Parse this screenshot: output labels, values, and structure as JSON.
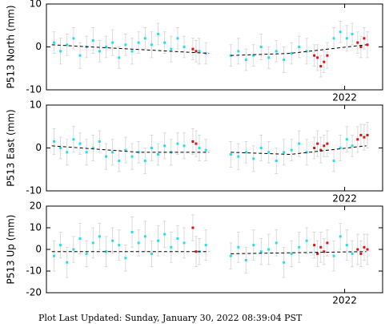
{
  "chart_data": [
    {
      "type": "scatter",
      "ylabel": "P513 North (mm)",
      "xlim": [
        2019.25,
        2022.35
      ],
      "xticks": [
        2022
      ],
      "ylim": [
        -10,
        10
      ],
      "yticks": [
        -10,
        0,
        10
      ],
      "series": [
        {
          "color": "#22e0f0",
          "mode": "points",
          "x": [
            2019.32,
            2019.38,
            2019.44,
            2019.5,
            2019.56,
            2019.62,
            2019.68,
            2019.74,
            2019.8,
            2019.86,
            2019.92,
            2019.98,
            2020.04,
            2020.1,
            2020.16,
            2020.22,
            2020.28,
            2020.34,
            2020.4,
            2020.46,
            2020.52,
            2020.66,
            2020.72,
            2020.95,
            2021.02,
            2021.09,
            2021.16,
            2021.23,
            2021.3,
            2021.37,
            2021.44,
            2021.51,
            2021.58,
            2021.65,
            2021.9,
            2021.96,
            2022.02,
            2022.07
          ],
          "values": [
            1,
            -1,
            0.5,
            2,
            -2,
            0,
            1.5,
            -1,
            0,
            1,
            -2.5,
            0.5,
            -1,
            1,
            2,
            0.5,
            3,
            1,
            -0.5,
            2,
            0,
            -1,
            -1.5,
            -2,
            -1,
            -3,
            -2,
            0,
            -2.5,
            -1,
            -3,
            -1.5,
            0,
            -1,
            2,
            3.5,
            2,
            3
          ],
          "errors": [
            2.5,
            3,
            2.5,
            2.5,
            3,
            2.5,
            3,
            2.5,
            2.5,
            3,
            2.5,
            2.5,
            3,
            2.5,
            2.5,
            3,
            2.5,
            2.5,
            3,
            2.5,
            2.5,
            3,
            2.5,
            2.5,
            3,
            2.5,
            2.5,
            3,
            2.5,
            2.5,
            3,
            2.5,
            2.5,
            3,
            2.5,
            2.5,
            3,
            2.5
          ]
        },
        {
          "color": "#e01010",
          "mode": "points",
          "x": [
            2020.6,
            2020.63,
            2021.72,
            2021.75,
            2021.78,
            2021.81,
            2021.84,
            2022.12,
            2022.15,
            2022.18,
            2022.21
          ],
          "values": [
            -0.5,
            -1,
            -2,
            -2.5,
            -4.5,
            -3.5,
            -2,
            1,
            0,
            2,
            0.5
          ],
          "errors": [
            2.5,
            2.5,
            2.5,
            3,
            2.5,
            2.5,
            3,
            2.5,
            2.5,
            2.5,
            3
          ]
        },
        {
          "color": "#000000",
          "mode": "dashed-line",
          "x": [
            2019.3,
            2020.75,
            2020.85,
            2020.95,
            2021.5,
            2022.2
          ],
          "values": [
            0.5,
            -1.5,
            null,
            -2,
            -1.5,
            0.5
          ]
        }
      ]
    },
    {
      "type": "scatter",
      "ylabel": "P513 East (mm)",
      "xlim": [
        2019.25,
        2022.35
      ],
      "xticks": [
        2022
      ],
      "ylim": [
        -10,
        10
      ],
      "yticks": [
        -10,
        0,
        10
      ],
      "series": [
        {
          "color": "#22e0f0",
          "mode": "points",
          "x": [
            2019.32,
            2019.38,
            2019.44,
            2019.5,
            2019.56,
            2019.62,
            2019.68,
            2019.74,
            2019.8,
            2019.86,
            2019.92,
            2019.98,
            2020.04,
            2020.1,
            2020.16,
            2020.22,
            2020.28,
            2020.34,
            2020.4,
            2020.46,
            2020.52,
            2020.66,
            2020.72,
            2020.95,
            2021.02,
            2021.09,
            2021.16,
            2021.23,
            2021.3,
            2021.37,
            2021.44,
            2021.51,
            2021.58,
            2021.65,
            2021.9,
            2021.96,
            2022.02,
            2022.07
          ],
          "values": [
            1.5,
            0,
            -1,
            2,
            1,
            -1,
            0,
            1.5,
            -2,
            -1,
            -3,
            -0.5,
            -2,
            -1,
            -3,
            0,
            -1.5,
            0.5,
            -1,
            1,
            0.5,
            0,
            -0.5,
            -1.5,
            -2,
            -1,
            -2.5,
            0,
            -1,
            -3,
            -1,
            -0.5,
            1,
            -1,
            -3,
            0,
            2,
            0.5
          ],
          "errors": [
            3,
            2.5,
            3,
            3,
            2.5,
            3,
            3,
            2.5,
            3,
            3,
            2.5,
            3,
            3,
            2.5,
            3,
            3,
            2.5,
            3,
            3,
            2.5,
            3,
            3,
            2.5,
            3,
            3,
            2.5,
            3,
            3,
            2.5,
            3,
            3,
            2.5,
            3,
            3,
            2.5,
            3,
            3,
            2.5
          ]
        },
        {
          "color": "#e01010",
          "mode": "points",
          "x": [
            2020.6,
            2020.63,
            2021.72,
            2021.75,
            2021.78,
            2021.81,
            2021.84,
            2022.12,
            2022.15,
            2022.18,
            2022.21
          ],
          "values": [
            1.5,
            1,
            0,
            1,
            -0.5,
            0.5,
            1,
            2,
            3,
            2.5,
            3
          ],
          "errors": [
            3,
            3,
            2.5,
            3,
            3,
            2.5,
            3,
            3,
            2.5,
            3,
            3
          ]
        },
        {
          "color": "#000000",
          "mode": "dashed-line",
          "x": [
            2019.3,
            2020.1,
            2020.75,
            2020.85,
            2020.95,
            2021.5,
            2022.2
          ],
          "values": [
            0.5,
            -1,
            -1,
            null,
            -1,
            -1.5,
            0.5
          ]
        }
      ]
    },
    {
      "type": "scatter",
      "ylabel": "P513 Up (mm)",
      "xlim": [
        2019.25,
        2022.35
      ],
      "xticks": [
        2022
      ],
      "ylim": [
        -20,
        20
      ],
      "yticks": [
        -20,
        -10,
        0,
        10,
        20
      ],
      "series": [
        {
          "color": "#22e0f0",
          "mode": "points",
          "x": [
            2019.32,
            2019.38,
            2019.44,
            2019.5,
            2019.56,
            2019.62,
            2019.68,
            2019.74,
            2019.8,
            2019.86,
            2019.92,
            2019.98,
            2020.04,
            2020.1,
            2020.16,
            2020.22,
            2020.28,
            2020.34,
            2020.4,
            2020.46,
            2020.52,
            2020.66,
            2020.72,
            2020.95,
            2021.02,
            2021.09,
            2021.16,
            2021.23,
            2021.3,
            2021.37,
            2021.44,
            2021.51,
            2021.58,
            2021.65,
            2021.9,
            2021.96,
            2022.02,
            2022.07
          ],
          "values": [
            -3,
            2,
            -6,
            0,
            5,
            -2,
            3,
            6,
            -1,
            4,
            2,
            -4,
            8,
            3,
            6,
            -2,
            4,
            7,
            1,
            5,
            3,
            -1,
            2,
            -3,
            1,
            -5,
            2,
            -1,
            0,
            3,
            -6,
            -2,
            1,
            4,
            -3,
            6,
            2,
            -2
          ],
          "errors": [
            7,
            6,
            7,
            6,
            7,
            6,
            7,
            6,
            7,
            6,
            7,
            6,
            7,
            6,
            7,
            6,
            7,
            6,
            7,
            6,
            7,
            6,
            7,
            6,
            7,
            6,
            7,
            6,
            7,
            6,
            7,
            6,
            7,
            6,
            7,
            6,
            7,
            6
          ]
        },
        {
          "color": "#e01010",
          "mode": "points",
          "x": [
            2020.6,
            2020.63,
            2021.72,
            2021.75,
            2021.78,
            2021.81,
            2021.84,
            2022.12,
            2022.15,
            2022.18,
            2022.21
          ],
          "values": [
            10,
            -1,
            2,
            -2,
            1,
            -1,
            3,
            0,
            -2,
            1,
            0
          ],
          "errors": [
            6,
            7,
            6,
            6,
            7,
            6,
            6,
            7,
            6,
            6,
            7
          ]
        },
        {
          "color": "#000000",
          "mode": "dashed-line",
          "x": [
            2019.3,
            2020.75,
            2020.85,
            2020.95,
            2022.2
          ],
          "values": [
            -1,
            -1,
            null,
            -2,
            -1
          ]
        }
      ]
    }
  ],
  "footer": "Plot Last Updated:   Sunday, January 30, 2022 08:39:04 PST"
}
